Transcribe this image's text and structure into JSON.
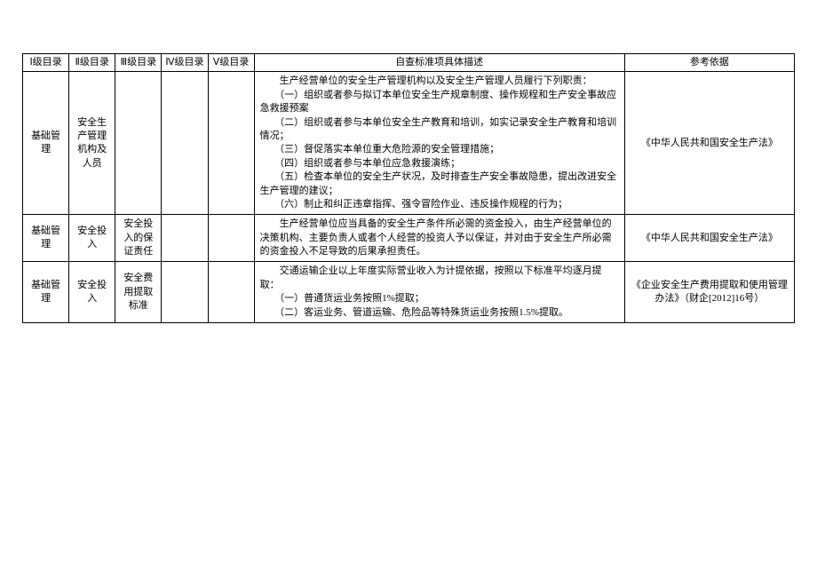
{
  "headers": {
    "level1": "Ⅰ级目录",
    "level2": "Ⅱ级目录",
    "level3": "Ⅲ级目录",
    "level4": "Ⅳ级目录",
    "level5": "Ⅴ级目录",
    "description": "自查标准项具体描述",
    "reference": "参考依据"
  },
  "rows": [
    {
      "level1": "基础管理",
      "level2": "安全生产管理机构及人员",
      "level3": "",
      "level4": "",
      "level5": "",
      "desc_lines": [
        "　　生产经营单位的安全生产管理机构以及安全生产管理人员履行下列职责：",
        "　　（一）组织或者参与拟订本单位安全生产规章制度、操作规程和生产安全事故应急救援预案",
        "　　（二）组织或者参与本单位安全生产教育和培训，如实记录安全生产教育和培训情况；",
        "　　（三）督促落实本单位重大危险源的安全管理措施；",
        "　　（四）组织或者参与本单位应急救援演练；",
        "　　（五）检查本单位的安全生产状况，及时排查生产安全事故隐患，提出改进安全生产管理的建议；",
        "　　（六）制止和纠正违章指挥、强令冒险作业、违反操作规程的行为；"
      ],
      "reference": "《中华人民共和国安全生产法》"
    },
    {
      "level1": "基础管理",
      "level2": "安全投入",
      "level3": "安全投入的保证责任",
      "level4": "",
      "level5": "",
      "desc_lines": [
        "　　生产经营单位应当具备的安全生产条件所必需的资金投入，由生产经营单位的决策机构、主要负责人或者个人经营的投资人予以保证，并对由于安全生产所必需的资金投入不足导致的后果承担责任。"
      ],
      "reference": "《中华人民共和国安全生产法》"
    },
    {
      "level1": "基础管理",
      "level2": "安全投入",
      "level3": "安全费用提取标准",
      "level4": "",
      "level5": "",
      "desc_lines": [
        "　　交通运输企业以上年度实际营业收入为计提依据，按照以下标准平均逐月提取：",
        "　　（一）普通货运业务按照1%提取；",
        "　　（二）客运业务、管道运输、危险品等特殊货运业务按照1.5%提取。"
      ],
      "reference": "《企业安全生产费用提取和使用管理办法》（财企[2012]16号）"
    }
  ],
  "style": {
    "font_size": 11,
    "border_color": "#000000",
    "background_color": "#ffffff"
  }
}
